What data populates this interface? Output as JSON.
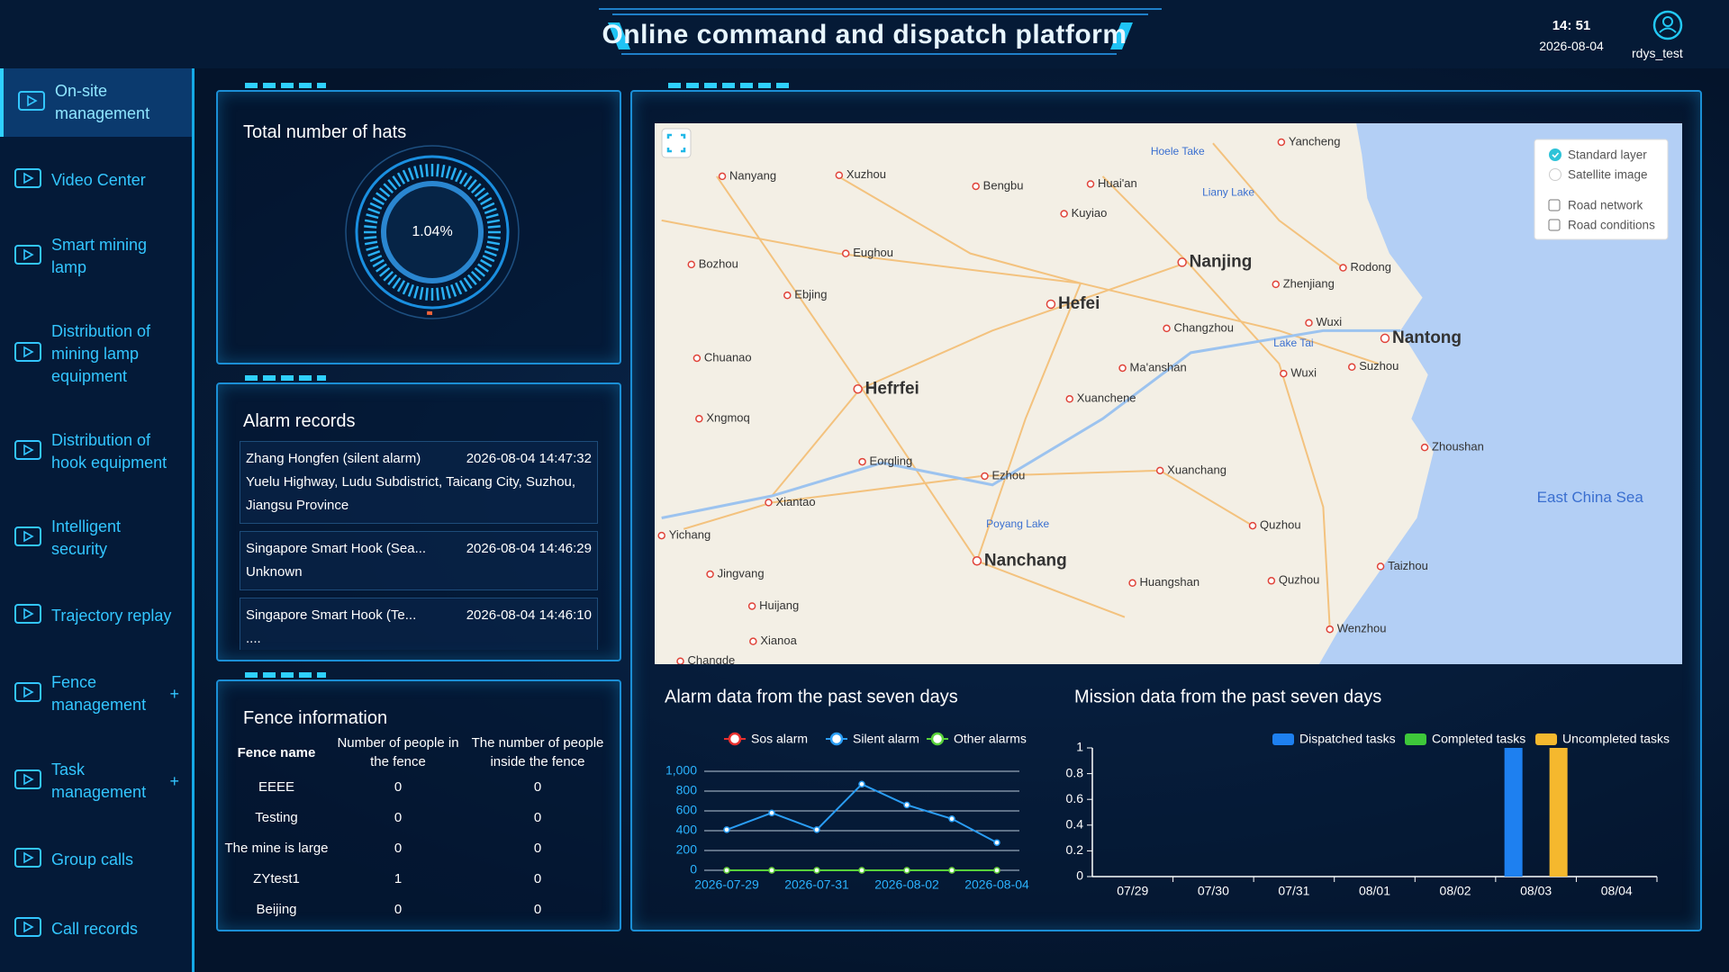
{
  "header": {
    "title": "Online command and dispatch platform",
    "time": "14: 51",
    "date": "2026-08-04",
    "user": "rdys_test"
  },
  "sidebar": {
    "items": [
      {
        "label": "On-site management",
        "active": true
      },
      {
        "label": "Video Center"
      },
      {
        "label": "Smart mining lamp"
      },
      {
        "label": "Distribution of mining lamp equipment"
      },
      {
        "label": "Distribution of hook equipment"
      },
      {
        "label": "Intelligent security"
      },
      {
        "label": "Trajectory replay"
      },
      {
        "label": "Fence management",
        "expand": "+"
      },
      {
        "label": "Task management",
        "expand": "+"
      },
      {
        "label": "Group calls"
      },
      {
        "label": "Call records"
      }
    ]
  },
  "hats": {
    "title": "Total number of hats",
    "gauge": {
      "value": 1.04,
      "label": "1.04%"
    }
  },
  "alarm_records": {
    "title": "Alarm records",
    "records": [
      {
        "name": "Zhang Hongfen (silent alarm)",
        "time": "2026-08-04 14:47:32",
        "address": "Yuelu Highway, Ludu Subdistrict, Taicang City, Suzhou, Jiangsu Province"
      },
      {
        "name": "Singapore Smart Hook (Sea...",
        "time": "2026-08-04 14:46:29",
        "address": "Unknown"
      },
      {
        "name": "Singapore Smart Hook (Te...",
        "time": "2026-08-04 14:46:10",
        "address": "...."
      }
    ]
  },
  "fence": {
    "title": "Fence information",
    "columns": [
      "Fence name",
      "Number of people in the fence",
      "The number of people inside the fence"
    ],
    "rows": [
      [
        "EEEE",
        0,
        0
      ],
      [
        "Testing",
        0,
        0
      ],
      [
        "The mine is large",
        0,
        0
      ],
      [
        "ZYtest1",
        1,
        0
      ],
      [
        "Beijing",
        0,
        0
      ]
    ]
  },
  "map": {
    "layers": [
      {
        "label": "Standard layer",
        "kind": "radio",
        "checked": true
      },
      {
        "label": "Satellite image",
        "kind": "radio",
        "checked": false
      },
      {
        "label": "Road network",
        "kind": "checkbox",
        "checked": false
      },
      {
        "label": "Road conditions",
        "kind": "checkbox",
        "checked": false
      }
    ],
    "labels": [
      {
        "text": "Yancheng",
        "kind": "city"
      },
      {
        "text": "Hoele Take",
        "kind": "lake"
      },
      {
        "text": "Nanyang",
        "kind": "city"
      },
      {
        "text": "Xuzhou",
        "kind": "city"
      },
      {
        "text": "Bengbu",
        "kind": "city"
      },
      {
        "text": "Huai'an",
        "kind": "city"
      },
      {
        "text": "Liany Lake",
        "kind": "lake"
      },
      {
        "text": "Kuyiao",
        "kind": "city"
      },
      {
        "text": "Bozhou",
        "kind": "city"
      },
      {
        "text": "Eughou",
        "kind": "city"
      },
      {
        "text": "Nanjing",
        "kind": "major"
      },
      {
        "text": "Rodong",
        "kind": "city"
      },
      {
        "text": "Zhenjiang",
        "kind": "city"
      },
      {
        "text": "Ebjing",
        "kind": "city"
      },
      {
        "text": "Hefei",
        "kind": "major"
      },
      {
        "text": "Wuxi",
        "kind": "city"
      },
      {
        "text": "Nantong",
        "kind": "major"
      },
      {
        "text": "Changzhou",
        "kind": "city"
      },
      {
        "text": "Lake Tai",
        "kind": "lake"
      },
      {
        "text": "Chuanao",
        "kind": "city"
      },
      {
        "text": "Suzhou",
        "kind": "city"
      },
      {
        "text": "Ma'anshan",
        "kind": "city"
      },
      {
        "text": "Wuxi",
        "kind": "city"
      },
      {
        "text": "Hefrfei",
        "kind": "major"
      },
      {
        "text": "Xuanchene",
        "kind": "city"
      },
      {
        "text": "Xngmoq",
        "kind": "city"
      },
      {
        "text": "Eorgling",
        "kind": "city"
      },
      {
        "text": "Zhoushan",
        "kind": "city"
      },
      {
        "text": "East China Sea",
        "kind": "sea"
      },
      {
        "text": "Ezhou",
        "kind": "city"
      },
      {
        "text": "Xuanchang",
        "kind": "city"
      },
      {
        "text": "Xiantao",
        "kind": "city"
      },
      {
        "text": "Poyang Lake",
        "kind": "lake"
      },
      {
        "text": "Quzhou",
        "kind": "city"
      },
      {
        "text": "Yichang",
        "kind": "city"
      },
      {
        "text": "Nanchang",
        "kind": "major"
      },
      {
        "text": "Taizhou",
        "kind": "city"
      },
      {
        "text": "Jingvang",
        "kind": "city"
      },
      {
        "text": "Huangshan",
        "kind": "city"
      },
      {
        "text": "Quzhou",
        "kind": "city"
      },
      {
        "text": "Huijang",
        "kind": "city"
      },
      {
        "text": "Wenzhou",
        "kind": "city"
      },
      {
        "text": "Xianoa",
        "kind": "city"
      },
      {
        "text": "Changde",
        "kind": "city"
      }
    ]
  },
  "alarm_chart": {
    "type": "line",
    "title": "Alarm data from the past seven days",
    "categories": [
      "2026-07-29",
      null,
      "2026-07-31",
      null,
      "2026-08-02",
      null,
      "2026-08-04"
    ],
    "series": [
      {
        "name": "Sos alarm",
        "color": "#e8302e",
        "values": [
          0,
          0,
          0,
          0,
          0,
          0,
          0
        ]
      },
      {
        "name": "Silent alarm",
        "color": "#2a9df4",
        "values": [
          410,
          580,
          410,
          870,
          660,
          520,
          280
        ]
      },
      {
        "name": "Other alarms",
        "color": "#58d13a",
        "values": [
          0,
          0,
          0,
          0,
          0,
          0,
          0
        ]
      }
    ],
    "ylim": [
      0,
      1000
    ],
    "yticks": [
      0,
      200,
      400,
      600,
      800,
      {
        "value": 1000,
        "label": "1,000"
      }
    ],
    "grid": true
  },
  "mission_chart": {
    "type": "bar",
    "title": "Mission data from the past seven days",
    "categories": [
      "07/29",
      "07/30",
      "07/31",
      "08/01",
      "08/02",
      "08/03",
      "08/04"
    ],
    "series": [
      {
        "name": "Dispatched tasks",
        "color": "#1e80f0",
        "values": [
          0,
          0,
          0,
          0,
          0,
          1,
          0
        ]
      },
      {
        "name": "Completed tasks",
        "color": "#3ec83a",
        "values": [
          0,
          0,
          0,
          0,
          0,
          0,
          0
        ]
      },
      {
        "name": "Uncompleted tasks",
        "color": "#f5b82e",
        "values": [
          0,
          0,
          0,
          0,
          0,
          1,
          0
        ]
      }
    ],
    "ylim": [
      0,
      1
    ],
    "yticks": [
      0,
      0.2,
      0.4,
      0.6,
      0.8,
      1
    ],
    "grid": false
  }
}
